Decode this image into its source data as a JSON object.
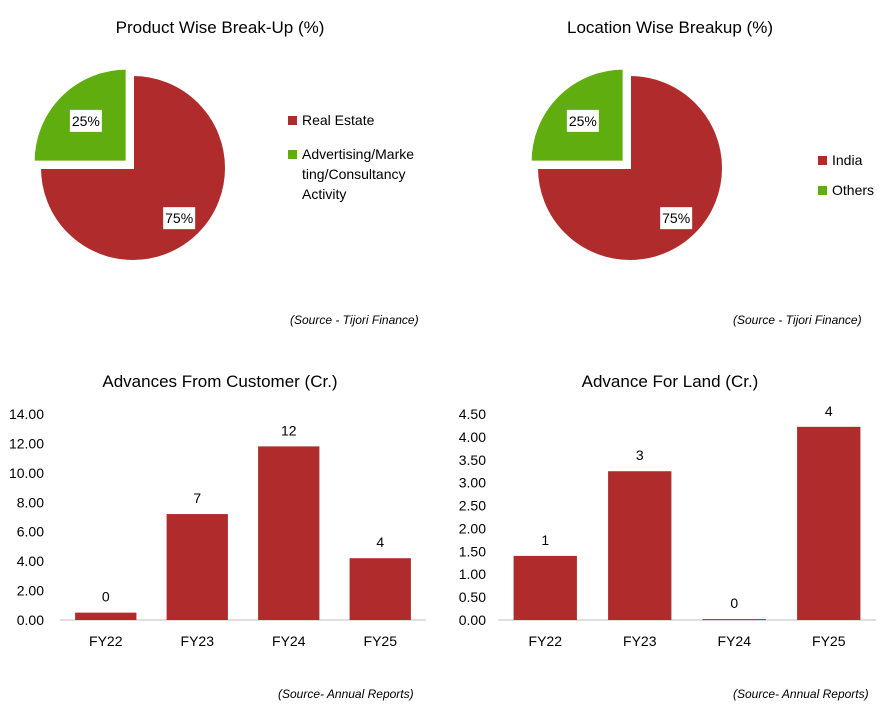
{
  "colors": {
    "red": "#B02B2B",
    "green": "#5FAD0E",
    "axis": "#BFBFBF"
  },
  "chart_data": [
    {
      "type": "pie",
      "title": "Product Wise Break-Up (%)",
      "labels": [
        "Real Estate",
        "Advertising/Marketing/Consultancy Activity"
      ],
      "legend_lines": [
        [
          "Real Estate"
        ],
        [
          "Advertising/Marke",
          "ting/Consultancy",
          "Activity"
        ]
      ],
      "values": [
        75,
        25
      ],
      "data_labels": [
        "75%",
        "25%"
      ],
      "legend": "right",
      "source": "(Source  - Tijori Finance)"
    },
    {
      "type": "pie",
      "title": "Location Wise Breakup (%)",
      "labels": [
        "India",
        "Others"
      ],
      "legend_lines": [
        [
          "India"
        ],
        [
          "Others"
        ]
      ],
      "values": [
        75,
        25
      ],
      "data_labels": [
        "75%",
        "25%"
      ],
      "legend": "right",
      "source": "(Source  - Tijori Finance)"
    },
    {
      "type": "bar",
      "title": "Advances From Customer (Cr.)",
      "categories": [
        "FY22",
        "FY23",
        "FY24",
        "FY25"
      ],
      "values": [
        0.5,
        7.2,
        11.8,
        4.2
      ],
      "data_labels": [
        "0",
        "7",
        "12",
        "4"
      ],
      "ylim": [
        0,
        14
      ],
      "yticks": [
        "0.00",
        "2.00",
        "4.00",
        "6.00",
        "8.00",
        "10.00",
        "12.00",
        "14.00"
      ],
      "source": "(Source-  Annual Reports)"
    },
    {
      "type": "bar",
      "title": "Advance For Land (Cr.)",
      "categories": [
        "FY22",
        "FY23",
        "FY24",
        "FY25"
      ],
      "values": [
        1.4,
        3.25,
        0.02,
        4.22
      ],
      "data_labels": [
        "1",
        "3",
        "0",
        "4"
      ],
      "ylim": [
        0,
        4.5
      ],
      "yticks": [
        "0.00",
        "0.50",
        "1.00",
        "1.50",
        "2.00",
        "2.50",
        "3.00",
        "3.50",
        "4.00",
        "4.50"
      ],
      "source": "(Source-  Annual Reports)"
    }
  ]
}
